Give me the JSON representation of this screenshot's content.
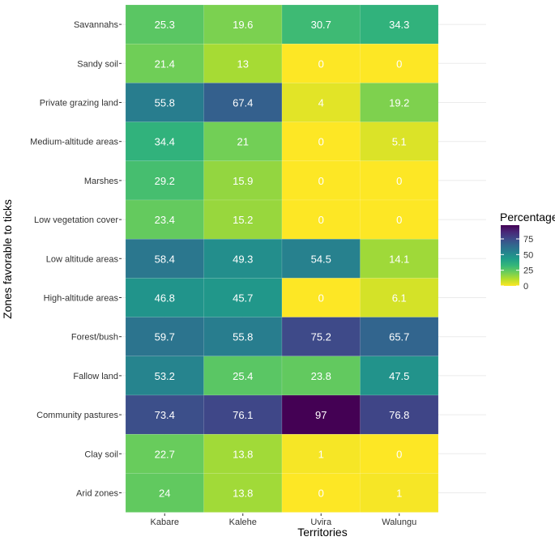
{
  "chart_data": {
    "type": "heatmap",
    "xlabel": "Territories",
    "ylabel": "Zones favorable to ticks",
    "x_categories": [
      "Kabare",
      "Kalehe",
      "Uvira",
      "Walungu"
    ],
    "y_categories": [
      "Savannahs",
      "Sandy soil",
      "Private grazing land",
      "Medium-altitude areas",
      "Marshes",
      "Low vegetation cover",
      "Low altitude areas",
      "High-altitude areas",
      "Forest/bush",
      "Fallow land",
      "Community pastures",
      "Clay soil",
      "Arid zones"
    ],
    "values": [
      [
        25.3,
        19.6,
        30.7,
        34.3
      ],
      [
        21.4,
        13,
        0,
        0
      ],
      [
        55.8,
        67.4,
        4,
        19.2
      ],
      [
        34.4,
        21,
        0,
        5.1
      ],
      [
        29.2,
        15.9,
        0,
        0
      ],
      [
        23.4,
        15.2,
        0,
        0
      ],
      [
        58.4,
        49.3,
        54.5,
        14.1
      ],
      [
        46.8,
        45.7,
        0,
        6.1
      ],
      [
        59.7,
        55.8,
        75.2,
        65.7
      ],
      [
        53.2,
        25.4,
        23.8,
        47.5
      ],
      [
        73.4,
        76.1,
        97,
        76.8
      ],
      [
        22.7,
        13.8,
        1,
        0
      ],
      [
        24,
        13.8,
        0,
        1
      ]
    ],
    "value_labels": [
      [
        "25.3",
        "19.6",
        "30.7",
        "34.3"
      ],
      [
        "21.4",
        "13",
        "0",
        "0"
      ],
      [
        "55.8",
        "67.4",
        "4",
        "19.2"
      ],
      [
        "34.4",
        "21",
        "0",
        "5.1"
      ],
      [
        "29.2",
        "15.9",
        "0",
        "0"
      ],
      [
        "23.4",
        "15.2",
        "0",
        "0"
      ],
      [
        "58.4",
        "49.3",
        "54.5",
        "14.1"
      ],
      [
        "46.8",
        "45.7",
        "0",
        "6.1"
      ],
      [
        "59.7",
        "55.8",
        "75.2",
        "65.7"
      ],
      [
        "53.2",
        "25.4",
        "23.8",
        "47.5"
      ],
      [
        "73.4",
        "76.1",
        "97",
        "76.8"
      ],
      [
        "22.7",
        "13.8",
        "1",
        "0"
      ],
      [
        "24",
        "13.8",
        "0",
        "1"
      ]
    ],
    "colorscale": "viridis-reversed",
    "value_range": [
      0,
      97
    ],
    "legend": {
      "title": "Percentage",
      "ticks": [
        0,
        25,
        50,
        75
      ],
      "placement": "right"
    }
  }
}
